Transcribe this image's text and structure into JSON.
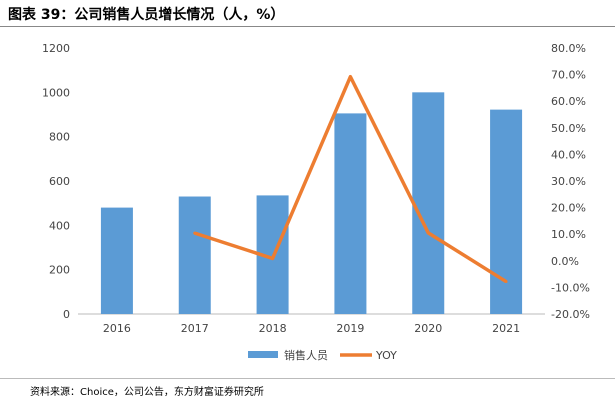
{
  "title": "图表 39：公司销售人员增长情况（人，%）",
  "source": "资料来源：Choice，公司公告，东方财富证券研究所",
  "chart_data": {
    "type": "bar+line",
    "categories": [
      "2016",
      "2017",
      "2018",
      "2019",
      "2020",
      "2021"
    ],
    "series": [
      {
        "name": "销售人员",
        "type": "bar",
        "axis": "left",
        "color": "#5B9BD5",
        "values": [
          480,
          530,
          535,
          905,
          1000,
          922
        ]
      },
      {
        "name": "YOY",
        "type": "line",
        "axis": "right",
        "color": "#ED7D31",
        "values": [
          null,
          10.4,
          0.9,
          69.2,
          10.5,
          -7.8
        ]
      }
    ],
    "ylim": [
      0,
      1200
    ],
    "yticks": [
      0,
      200,
      400,
      600,
      800,
      1000,
      1200
    ],
    "y2lim": [
      -20,
      80
    ],
    "y2ticks": [
      "-20.0%",
      "-10.0%",
      "0.0%",
      "10.0%",
      "20.0%",
      "30.0%",
      "40.0%",
      "50.0%",
      "60.0%",
      "70.0%",
      "80.0%"
    ],
    "legend": "bottom",
    "grid": false
  }
}
